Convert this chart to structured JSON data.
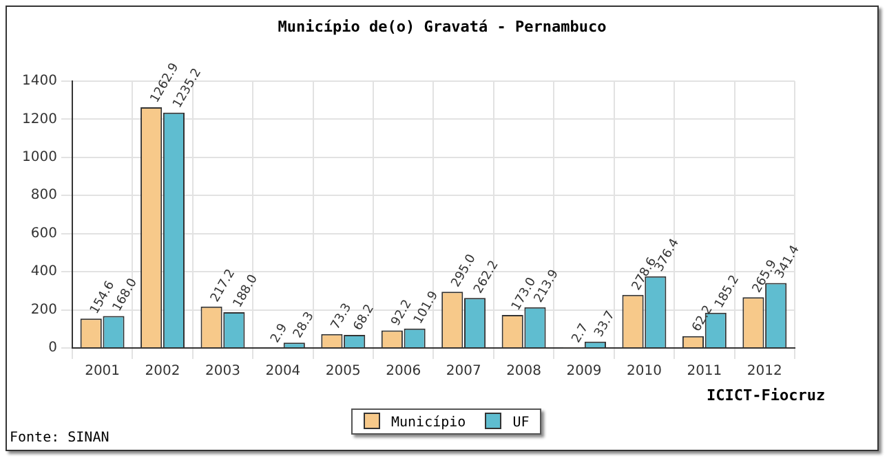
{
  "chart_data": {
    "type": "bar",
    "title": "Município de(o) Gravatá - Pernambuco",
    "categories": [
      "2001",
      "2002",
      "2003",
      "2004",
      "2005",
      "2006",
      "2007",
      "2008",
      "2009",
      "2010",
      "2011",
      "2012"
    ],
    "series": [
      {
        "name": "Município",
        "color": "#f7c98a",
        "values": [
          154.6,
          1262.9,
          217.2,
          2.9,
          73.3,
          92.2,
          295.0,
          173.0,
          2.7,
          278.6,
          62.2,
          265.9
        ],
        "value_labels": [
          "154.6",
          "1262.9",
          "217.2",
          "2.9",
          "73.3",
          "92.2",
          "295.0",
          "173.0",
          "2.7",
          "278.6",
          "62.2",
          "265.9"
        ]
      },
      {
        "name": "UF",
        "color": "#5fbdd0",
        "values": [
          168.0,
          1235.2,
          188.0,
          28.3,
          68.2,
          101.9,
          262.2,
          213.9,
          33.7,
          376.4,
          185.2,
          341.4
        ],
        "value_labels": [
          "168.0",
          "1235.2",
          "188.0",
          "28.3",
          "68.2",
          "101.9",
          "262.2",
          "213.9",
          "33.7",
          "376.4",
          "185.2",
          "341.4"
        ]
      }
    ],
    "ylim": [
      0,
      1400
    ],
    "yticks": [
      0,
      200,
      400,
      600,
      800,
      1000,
      1200,
      1400
    ],
    "grid": true,
    "legend": "bottom",
    "annotations": [
      "ICICT-Fiocruz",
      "Fonte: SINAN"
    ]
  }
}
